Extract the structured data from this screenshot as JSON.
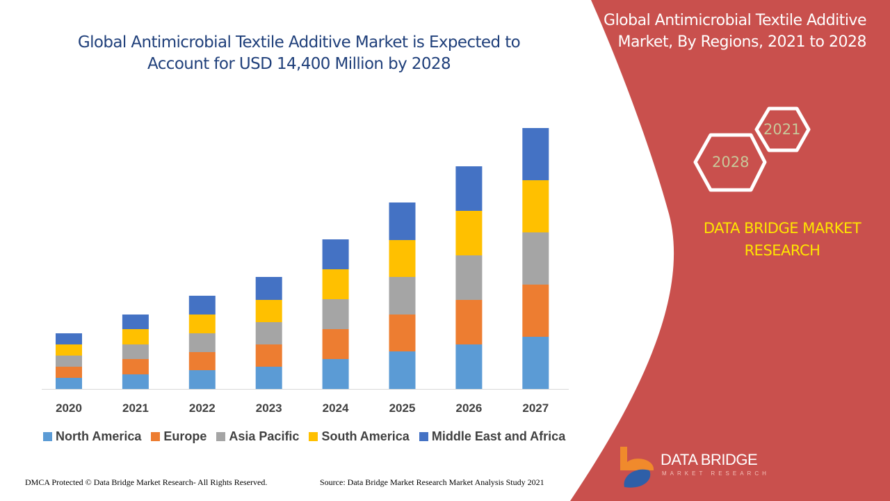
{
  "header": {
    "title": "Global Antimicrobial Textile Additive Market is Expected to Account for USD 14,400 Million by 2028"
  },
  "side_panel": {
    "title": "Global Antimicrobial Textile Additive Market, By Regions, 2021 to 2028",
    "hex_years": [
      "2021",
      "2028"
    ],
    "brand": "DATA BRIDGE MARKET RESEARCH",
    "panel_color": "#c9504d"
  },
  "logo": {
    "name": "DATA BRIDGE",
    "sub": "MARKET RESEARCH"
  },
  "footer": {
    "dmca": "DMCA Protected © Data Bridge Market Research- All Rights Reserved.",
    "source": "Source: Data Bridge Market Research Market Analysis Study 2021"
  },
  "chart_data": {
    "type": "bar",
    "stacked": true,
    "title": "",
    "xlabel": "",
    "ylabel": "",
    "grid": false,
    "legend": "bottom",
    "y_axis_shown": false,
    "categories": [
      "2020",
      "2021",
      "2022",
      "2023",
      "2024",
      "2025",
      "2026",
      "2027"
    ],
    "series": [
      {
        "name": "North America",
        "color": "#5b9bd5",
        "values": [
          16,
          21,
          27,
          32,
          43,
          54,
          64,
          75
        ]
      },
      {
        "name": "Europe",
        "color": "#ed7d31",
        "values": [
          16,
          22,
          26,
          32,
          43,
          53,
          64,
          75
        ]
      },
      {
        "name": "Asia Pacific",
        "color": "#a5a5a5",
        "values": [
          16,
          21,
          27,
          32,
          43,
          54,
          64,
          75
        ]
      },
      {
        "name": "South America",
        "color": "#ffc000",
        "values": [
          16,
          22,
          27,
          32,
          43,
          53,
          64,
          75
        ]
      },
      {
        "name": "Middle East and Africa",
        "color": "#4472c4",
        "values": [
          16,
          21,
          27,
          33,
          43,
          54,
          64,
          75
        ]
      }
    ]
  }
}
